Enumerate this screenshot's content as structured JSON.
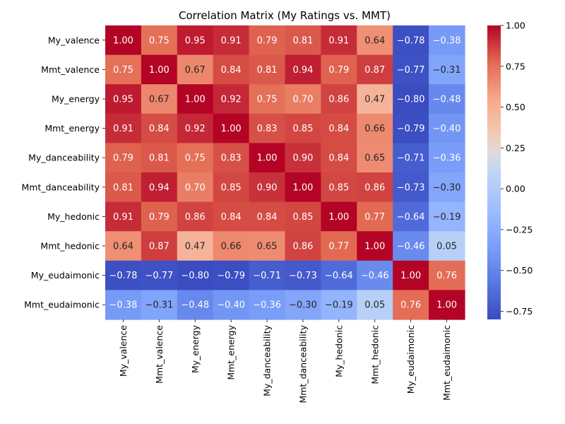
{
  "chart_data": {
    "type": "heatmap",
    "title": "Correlation Matrix (My Ratings vs. MMT)",
    "xlabel": "",
    "ylabel": "",
    "row_labels": [
      "My_valence",
      "Mmt_valence",
      "My_energy",
      "Mmt_energy",
      "My_danceability",
      "Mmt_danceability",
      "My_hedonic",
      "Mmt_hedonic",
      "My_eudaimonic",
      "Mmt_eudaimonic"
    ],
    "col_labels": [
      "My_valence",
      "Mmt_valence",
      "My_energy",
      "Mmt_energy",
      "My_danceability",
      "Mmt_danceability",
      "My_hedonic",
      "Mmt_hedonic",
      "My_eudaimonic",
      "Mmt_eudaimonic"
    ],
    "values": [
      [
        1.0,
        0.75,
        0.95,
        0.91,
        0.79,
        0.81,
        0.91,
        0.64,
        -0.78,
        -0.38
      ],
      [
        0.75,
        1.0,
        0.67,
        0.84,
        0.81,
        0.94,
        0.79,
        0.87,
        -0.77,
        -0.31
      ],
      [
        0.95,
        0.67,
        1.0,
        0.92,
        0.75,
        0.7,
        0.86,
        0.47,
        -0.8,
        -0.48
      ],
      [
        0.91,
        0.84,
        0.92,
        1.0,
        0.83,
        0.85,
        0.84,
        0.66,
        -0.79,
        -0.4
      ],
      [
        0.79,
        0.81,
        0.75,
        0.83,
        1.0,
        0.9,
        0.84,
        0.65,
        -0.71,
        -0.36
      ],
      [
        0.81,
        0.94,
        0.7,
        0.85,
        0.9,
        1.0,
        0.85,
        0.86,
        -0.73,
        -0.3
      ],
      [
        0.91,
        0.79,
        0.86,
        0.84,
        0.84,
        0.85,
        1.0,
        0.77,
        -0.64,
        -0.19
      ],
      [
        0.64,
        0.87,
        0.47,
        0.66,
        0.65,
        0.86,
        0.77,
        1.0,
        -0.46,
        0.05
      ],
      [
        -0.78,
        -0.77,
        -0.8,
        -0.79,
        -0.71,
        -0.73,
        -0.64,
        -0.46,
        1.0,
        0.76
      ],
      [
        -0.38,
        -0.31,
        -0.48,
        -0.4,
        -0.36,
        -0.3,
        -0.19,
        0.05,
        0.76,
        1.0
      ]
    ],
    "colormap": "coolwarm",
    "vmin": -0.8,
    "vmax": 1.0,
    "colorbar_ticks": [
      "1.00",
      "0.75",
      "0.50",
      "0.25",
      "0.00",
      "−0.25",
      "−0.50",
      "−0.75"
    ],
    "annotation_format": "2 decimals",
    "grid": false,
    "legend_position": "right (colorbar)"
  }
}
